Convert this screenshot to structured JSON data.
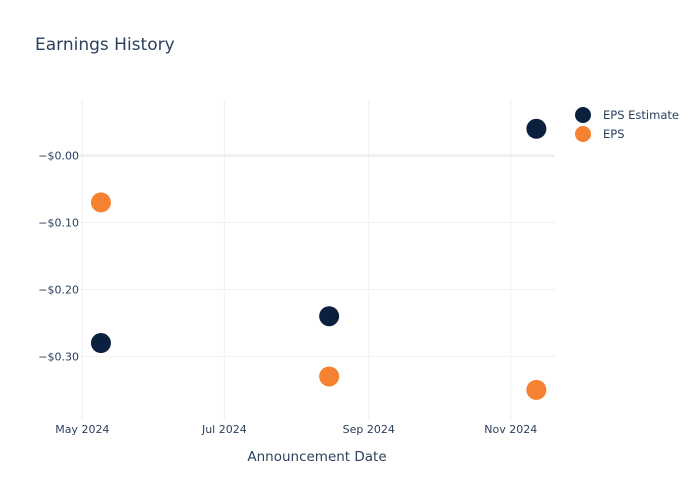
{
  "chart_data": {
    "type": "scatter",
    "title": "Earnings History",
    "xlabel": "Announcement Date",
    "ylabel": "",
    "x_ticks": [
      {
        "date": "2024-05-01",
        "label": "May 2024"
      },
      {
        "date": "2024-07-01",
        "label": "Jul 2024"
      },
      {
        "date": "2024-09-01",
        "label": "Sep 2024"
      },
      {
        "date": "2024-11-01",
        "label": "Nov 2024"
      }
    ],
    "y_ticks": [
      {
        "value": 0.0,
        "label": "−$0.00"
      },
      {
        "value": -0.1,
        "label": "−$0.10"
      },
      {
        "value": -0.2,
        "label": "−$0.20"
      },
      {
        "value": -0.3,
        "label": "−$0.30"
      }
    ],
    "xlim": [
      "2024-04-30",
      "2024-11-20"
    ],
    "ylim": [
      -0.395,
      0.083
    ],
    "grid": true,
    "legend_position": "top-right",
    "series": [
      {
        "name": "EPS Estimate",
        "color": "#0b1f3f",
        "points": [
          {
            "x": "2024-05-09",
            "y": -0.28
          },
          {
            "x": "2024-08-15",
            "y": -0.24
          },
          {
            "x": "2024-11-12",
            "y": 0.04
          }
        ]
      },
      {
        "name": "EPS",
        "color": "#f58231",
        "points": [
          {
            "x": "2024-05-09",
            "y": -0.07
          },
          {
            "x": "2024-08-15",
            "y": -0.33
          },
          {
            "x": "2024-11-12",
            "y": -0.35
          }
        ]
      }
    ]
  }
}
